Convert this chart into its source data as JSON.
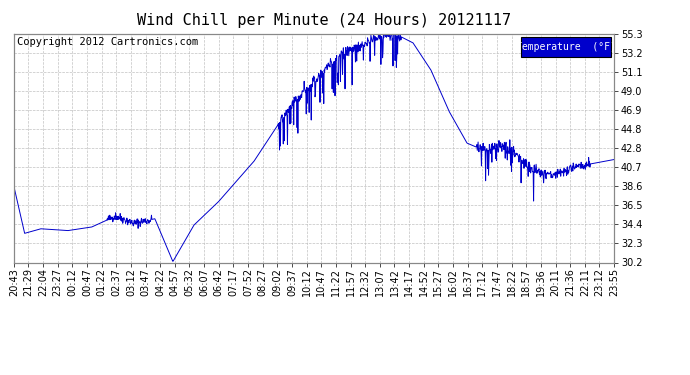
{
  "title": "Wind Chill per Minute (24 Hours) 20121117",
  "copyright_text": "Copyright 2012 Cartronics.com",
  "legend_label": "Temperature  (°F)",
  "line_color": "#0000cc",
  "legend_bg": "#0000cc",
  "legend_fg": "#ffffff",
  "bg_color": "#ffffff",
  "plot_bg": "#ffffff",
  "grid_color": "#bbbbbb",
  "ylim": [
    30.2,
    55.3
  ],
  "yticks": [
    30.2,
    32.3,
    34.4,
    36.5,
    38.6,
    40.7,
    42.8,
    44.8,
    46.9,
    49.0,
    51.1,
    53.2,
    55.3
  ],
  "xtick_labels": [
    "20:43",
    "21:29",
    "22:04",
    "23:27",
    "00:12",
    "00:47",
    "01:22",
    "02:37",
    "03:12",
    "03:47",
    "04:22",
    "04:57",
    "05:32",
    "06:07",
    "06:42",
    "07:17",
    "07:52",
    "08:27",
    "09:02",
    "09:37",
    "10:12",
    "10:47",
    "11:22",
    "11:57",
    "12:32",
    "13:07",
    "13:42",
    "14:17",
    "14:52",
    "15:27",
    "16:02",
    "16:37",
    "17:12",
    "17:47",
    "18:22",
    "18:57",
    "19:36",
    "20:11",
    "21:36",
    "22:11",
    "23:12",
    "23:55"
  ],
  "title_fontsize": 11,
  "tick_fontsize": 7,
  "copyright_fontsize": 7.5
}
